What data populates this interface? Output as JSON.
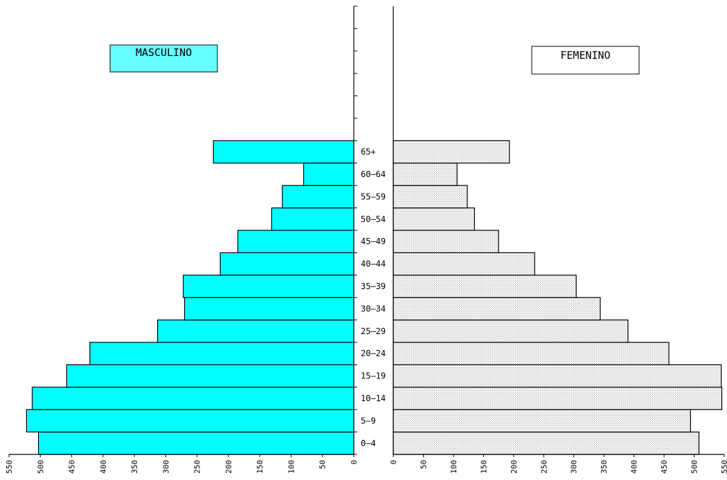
{
  "chart_data": {
    "type": "bar",
    "orientation": "horizontal",
    "layout": "population-pyramid",
    "categories": [
      "0-4",
      "5-9",
      "10-14",
      "15-19",
      "20-24",
      "25-29",
      "30-34",
      "35-39",
      "40-44",
      "45-49",
      "50-54",
      "55-59",
      "60-64",
      "65+"
    ],
    "category_labels": [
      "0–4",
      "5–9",
      "10–14",
      "15–19",
      "20–24",
      "25–29",
      "30–34",
      "35–39",
      "40–44",
      "45–49",
      "50–54",
      "55–59",
      "60–64",
      "65+"
    ],
    "series": [
      {
        "name": "MASCULINO",
        "side": "left",
        "color": "#00ffff",
        "values": [
          503,
          522,
          513,
          458,
          421,
          313,
          270,
          272,
          213,
          185,
          131,
          114,
          80,
          224
        ]
      },
      {
        "name": "FEMENINO",
        "side": "right",
        "color": "#ececec",
        "values": [
          508,
          494,
          546,
          545,
          458,
          390,
          344,
          304,
          235,
          175,
          135,
          123,
          106,
          193
        ]
      }
    ],
    "xlim": [
      0,
      550
    ],
    "xticks": [
      0,
      50,
      100,
      150,
      200,
      250,
      300,
      350,
      400,
      450,
      500,
      550
    ],
    "legend": {
      "left_label": "MASCULINO",
      "right_label": "FEMENINO",
      "placement": "top"
    },
    "grid": false
  }
}
